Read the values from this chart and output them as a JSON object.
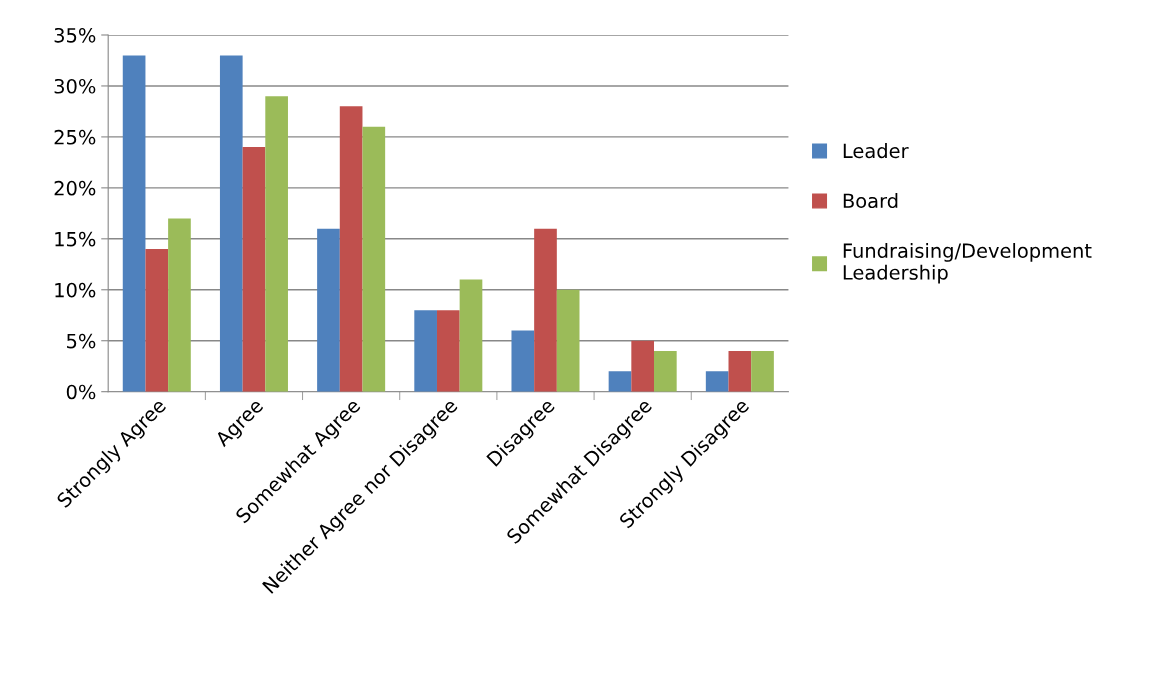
{
  "chart_data": {
    "type": "bar",
    "categories": [
      "Strongly Agree",
      "Agree",
      "Somewhat Agree",
      "Neither Agree nor Disagree",
      "Disagree",
      "Somewhat Disagree",
      "Strongly Disagree"
    ],
    "series": [
      {
        "name": "Leader",
        "color": "#4f81bd",
        "values": [
          33,
          33,
          16,
          8,
          6,
          2,
          2
        ]
      },
      {
        "name": "Board",
        "color": "#c0504d",
        "values": [
          14,
          24,
          28,
          8,
          16,
          5,
          4
        ]
      },
      {
        "name": "Fundraising/Development\nLeadership",
        "color": "#9bbb59",
        "values": [
          17,
          29,
          26,
          11,
          10,
          4,
          4
        ]
      }
    ],
    "ylim": [
      0,
      35
    ],
    "yticks": [
      {
        "value": 0,
        "label": "0%"
      },
      {
        "value": 5,
        "label": "5%"
      },
      {
        "value": 10,
        "label": "10%"
      },
      {
        "value": 15,
        "label": "15%"
      },
      {
        "value": 20,
        "label": "20%"
      },
      {
        "value": 25,
        "label": "25%"
      },
      {
        "value": 30,
        "label": "30%"
      },
      {
        "value": 35,
        "label": "35%"
      }
    ],
    "grid": "y",
    "legend": "right"
  }
}
